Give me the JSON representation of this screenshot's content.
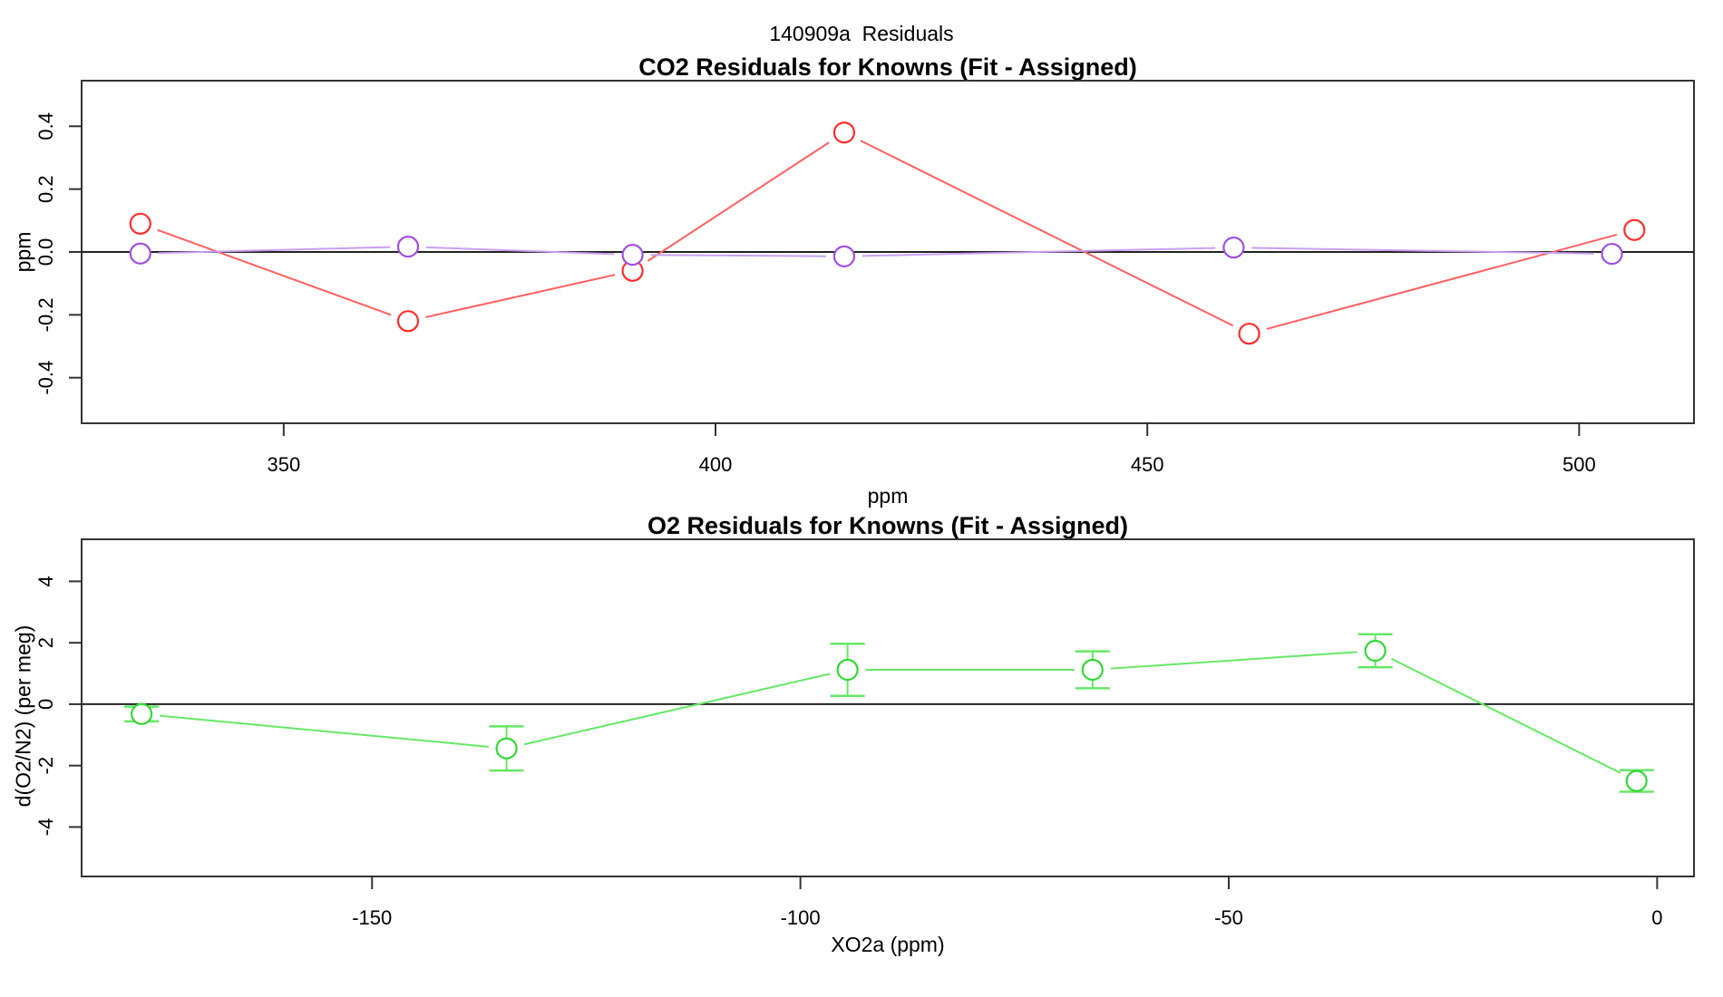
{
  "page_title": "140909a  Residuals",
  "chart_data": [
    {
      "type": "line",
      "title": "CO2 Residuals for Knowns (Fit - Assigned)",
      "xlabel": "ppm",
      "ylabel": "ppm",
      "xlim": [
        326.6,
        513.3
      ],
      "ylim": [
        -0.545,
        0.545
      ],
      "xticks": [
        "350",
        "400",
        "450",
        "500"
      ],
      "xtick_values": [
        350,
        400,
        450,
        500
      ],
      "yticks": [
        "-0.4",
        "-0.2",
        "0.0",
        "0.2",
        "0.4"
      ],
      "ytick_values": [
        -0.4,
        -0.2,
        0.0,
        0.2,
        0.4
      ],
      "grid": false,
      "legend": null,
      "zero_line": true,
      "series": [
        {
          "name": "co2-residuals-red",
          "marker": "open-circle",
          "point_color": "#ff2d2d",
          "line_color": "#ff6060",
          "x": [
            333.4,
            364.4,
            390.4,
            414.9,
            461.8,
            506.4
          ],
          "y": [
            0.09,
            -0.22,
            -0.06,
            0.38,
            -0.26,
            0.07
          ]
        },
        {
          "name": "co2-residuals-purple",
          "marker": "open-circle",
          "point_color": "#a050e0",
          "line_color": "#c9a0f0",
          "x": [
            333.4,
            364.4,
            390.4,
            414.9,
            460.0,
            503.8
          ],
          "y": [
            -0.005,
            0.017,
            -0.009,
            -0.014,
            0.014,
            -0.006
          ]
        }
      ]
    },
    {
      "type": "line",
      "title": "O2 Residuals for Knowns (Fit - Assigned)",
      "xlabel": "XO2a (ppm)",
      "ylabel": "d(O2/N2) (per meg)",
      "xlim": [
        -183.9,
        4.3
      ],
      "ylim": [
        -5.61,
        5.37
      ],
      "xticks": [
        "-150",
        "-100",
        "-50",
        "0"
      ],
      "xtick_values": [
        -150,
        -100,
        -50,
        0
      ],
      "yticks": [
        "-4",
        "-2",
        "0",
        "2",
        "4"
      ],
      "ytick_values": [
        -4,
        -2,
        0,
        2,
        4
      ],
      "grid": false,
      "legend": null,
      "zero_line": true,
      "series": [
        {
          "name": "o2-residuals-green",
          "marker": "open-circle",
          "point_color": "#35d835",
          "line_color": "#66e866",
          "x": [
            -176.9,
            -134.3,
            -94.5,
            -65.9,
            -32.9,
            -2.4
          ],
          "y": [
            -0.32,
            -1.44,
            1.12,
            1.12,
            1.74,
            -2.5
          ],
          "yerr": [
            0.24,
            0.72,
            0.85,
            0.6,
            0.54,
            0.35
          ]
        }
      ]
    }
  ]
}
